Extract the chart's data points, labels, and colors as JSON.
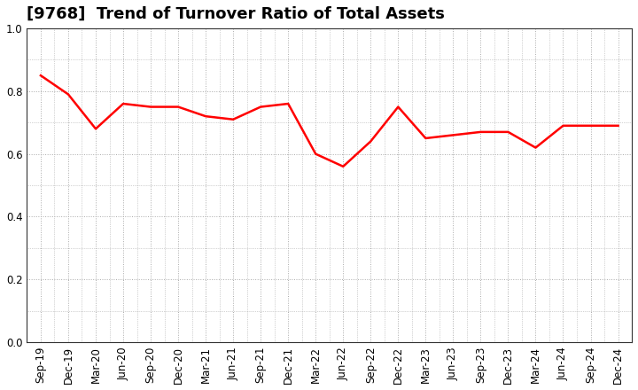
{
  "title": "[9768]  Trend of Turnover Ratio of Total Assets",
  "x_labels": [
    "Sep-19",
    "Dec-19",
    "Mar-20",
    "Jun-20",
    "Sep-20",
    "Dec-20",
    "Mar-21",
    "Jun-21",
    "Sep-21",
    "Dec-21",
    "Mar-22",
    "Jun-22",
    "Sep-22",
    "Dec-22",
    "Mar-23",
    "Jun-23",
    "Sep-23",
    "Dec-23",
    "Mar-24",
    "Jun-24",
    "Sep-24",
    "Dec-24"
  ],
  "y_values": [
    0.85,
    0.79,
    0.68,
    0.76,
    0.75,
    0.75,
    0.72,
    0.71,
    0.75,
    0.76,
    0.6,
    0.56,
    0.64,
    0.75,
    0.65,
    0.66,
    0.67,
    0.67,
    0.62,
    0.69,
    0.69,
    0.69
  ],
  "line_color": "#FF0000",
  "line_width": 1.8,
  "ylim": [
    0.0,
    1.0
  ],
  "yticks": [
    0.0,
    0.2,
    0.4,
    0.6,
    0.8,
    1.0
  ],
  "grid_color": "#aaaaaa",
  "background_color": "#ffffff",
  "title_fontsize": 13,
  "tick_fontsize": 8.5
}
